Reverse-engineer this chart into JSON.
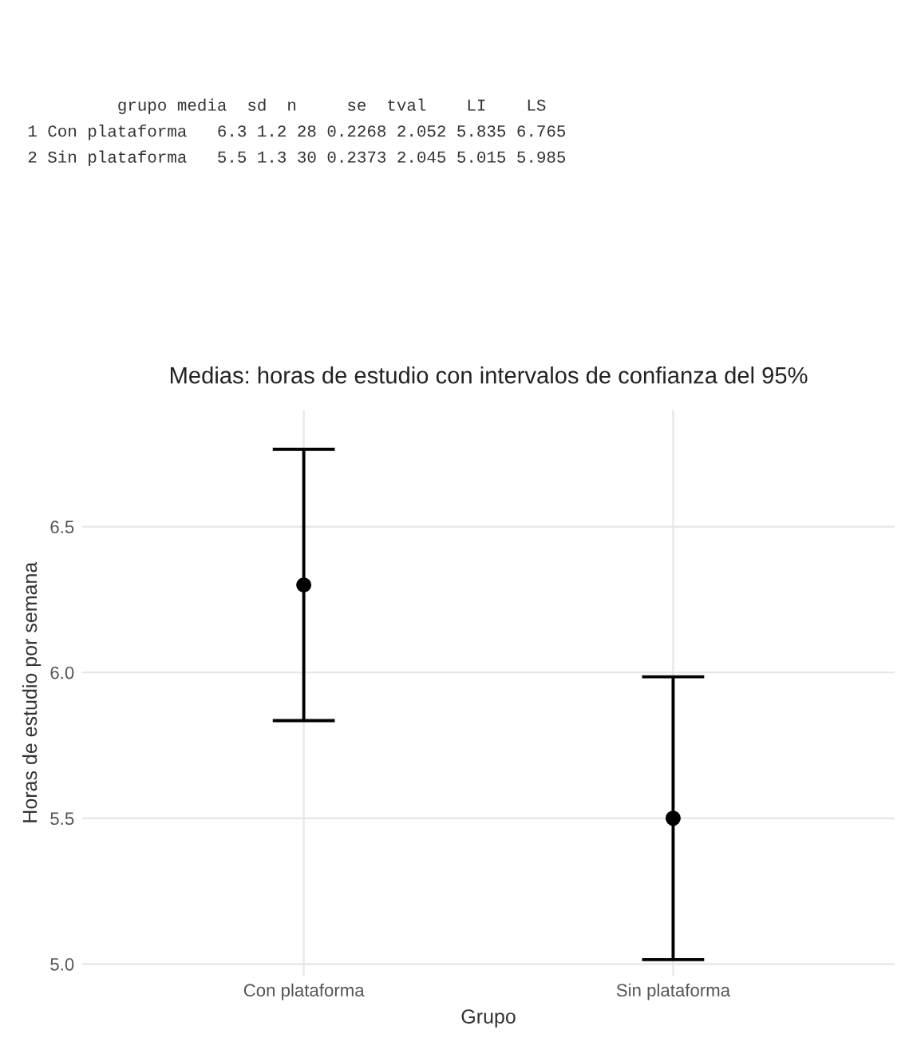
{
  "chart_data": {
    "type": "scatter",
    "title": "Medias: horas de estudio con intervalos de confianza del 95%",
    "xlabel": "Grupo",
    "ylabel": "Horas de estudio por semana",
    "categories": [
      "Con plataforma",
      "Sin plataforma"
    ],
    "values": [
      6.3,
      5.5
    ],
    "errors": [
      [
        5.835,
        6.765
      ],
      [
        5.015,
        5.985
      ]
    ],
    "color": "#000000",
    "marker": "circle",
    "ylim": [
      4.96,
      6.9
    ],
    "yticks": [
      "5.0",
      5.5,
      "6.0",
      6.5
    ],
    "grid": true,
    "annotations": [
      "         grupo media  sd  n     se  tval    LI    LS",
      "1 Con plataforma   6.3 1.2 28 0.2268 2.052 5.835 6.765",
      "2 Sin plataforma   5.5 1.3 30 0.2373 2.045 5.015 5.985"
    ]
  }
}
